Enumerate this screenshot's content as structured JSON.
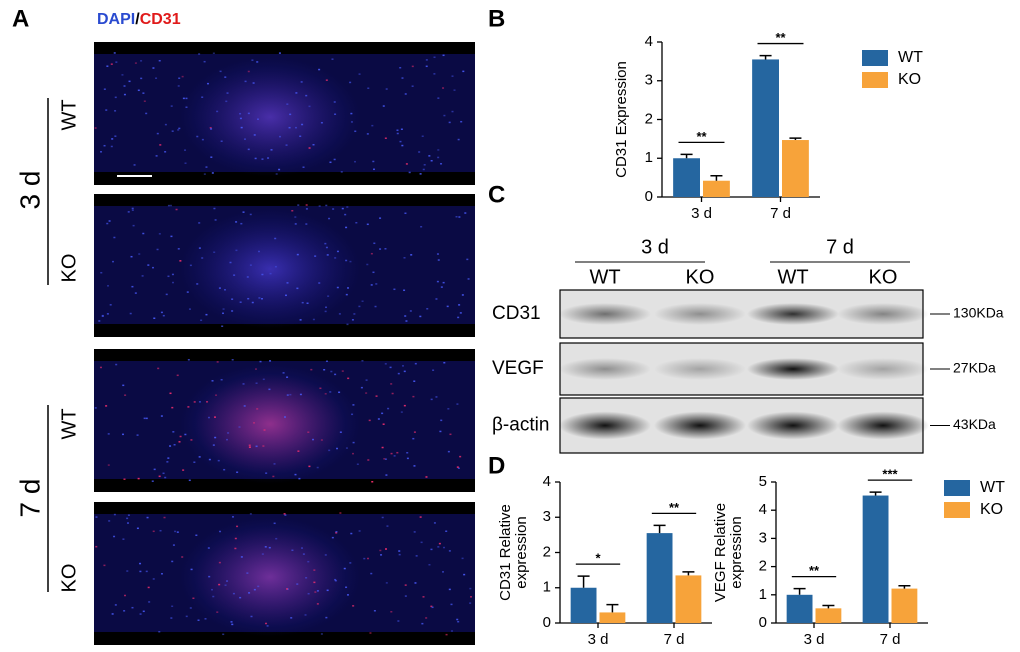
{
  "panels": {
    "a": "A",
    "b": "B",
    "c": "C",
    "d": "D"
  },
  "microscopy": {
    "stain_dapi": "DAPI",
    "stain_sep": "/",
    "stain_cd31": "CD31",
    "timepoints": [
      "3 d",
      "7 d"
    ],
    "groups": [
      "WT",
      "KO",
      "WT",
      "KO"
    ]
  },
  "western_blot": {
    "timepoints": [
      "3 d",
      "7 d"
    ],
    "lanes": [
      "WT",
      "KO",
      "WT",
      "KO"
    ],
    "proteins": [
      "CD31",
      "VEGF",
      "β-actin"
    ],
    "sizes": [
      "130KDa",
      "27KDa",
      "43KDa"
    ]
  },
  "chart_data": [
    {
      "type": "bar",
      "ylabel": [
        "CD31 Expression"
      ],
      "categories": [
        "3 d",
        "7 d"
      ],
      "series": [
        {
          "name": "WT",
          "color": "#2566a0",
          "values": [
            1.0,
            3.55
          ],
          "errors": [
            0.1,
            0.1
          ]
        },
        {
          "name": "KO",
          "color": "#f7a33a",
          "values": [
            0.42,
            1.47
          ],
          "errors": [
            0.13,
            0.05
          ]
        }
      ],
      "significance": [
        "**",
        "**"
      ],
      "ylim": [
        0,
        4
      ],
      "yticks": [
        0,
        1,
        2,
        3,
        4
      ],
      "legend": true
    },
    {
      "type": "bar",
      "ylabel": [
        "CD31 Relative",
        "expression"
      ],
      "categories": [
        "3 d",
        "7 d"
      ],
      "series": [
        {
          "name": "WT",
          "color": "#2566a0",
          "values": [
            1.0,
            2.55
          ],
          "errors": [
            0.33,
            0.22
          ]
        },
        {
          "name": "KO",
          "color": "#f7a33a",
          "values": [
            0.3,
            1.35
          ],
          "errors": [
            0.22,
            0.1
          ]
        }
      ],
      "significance": [
        "*",
        "**"
      ],
      "ylim": [
        0,
        4
      ],
      "yticks": [
        0,
        1,
        2,
        3,
        4
      ],
      "legend": false
    },
    {
      "type": "bar",
      "ylabel": [
        "VEGF Relative",
        "expression"
      ],
      "categories": [
        "3 d",
        "7 d"
      ],
      "series": [
        {
          "name": "WT",
          "color": "#2566a0",
          "values": [
            1.0,
            4.52
          ],
          "errors": [
            0.22,
            0.12
          ]
        },
        {
          "name": "KO",
          "color": "#f7a33a",
          "values": [
            0.52,
            1.22
          ],
          "errors": [
            0.1,
            0.1
          ]
        }
      ],
      "significance": [
        "**",
        "***"
      ],
      "ylim": [
        0,
        5
      ],
      "yticks": [
        0,
        1,
        2,
        3,
        4,
        5
      ],
      "legend": true
    }
  ]
}
